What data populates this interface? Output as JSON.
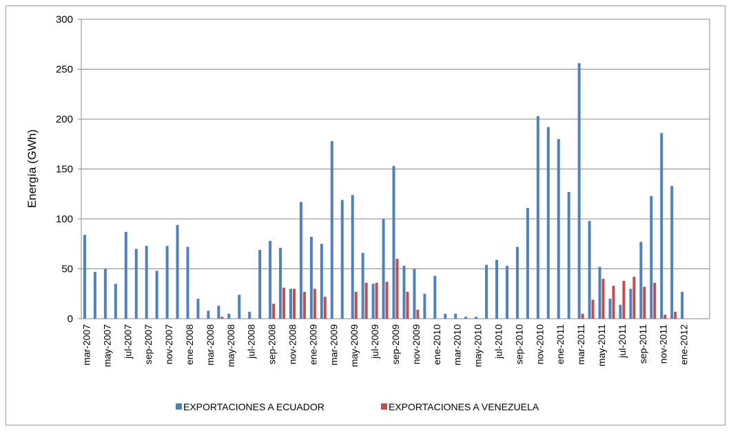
{
  "chart_data": {
    "type": "bar",
    "y_label": "Energía (GWh)",
    "categories": [
      "mar-2007",
      null,
      "may-2007",
      null,
      "jul-2007",
      null,
      "sep-2007",
      null,
      "nov-2007",
      null,
      "ene-2008",
      null,
      "mar-2008",
      null,
      "may-2008",
      null,
      "jul-2008",
      null,
      "sep-2008",
      null,
      "nov-2008",
      null,
      "ene-2009",
      null,
      "mar-2009",
      null,
      "may-2009",
      null,
      "jul-2009",
      null,
      "sep-2009",
      null,
      "nov-2009",
      null,
      "ene-2010",
      null,
      "mar-2010",
      null,
      "may-2010",
      null,
      "jul-2010",
      null,
      "sep-2010",
      null,
      "nov-2010",
      null,
      "ene-2011",
      null,
      "mar-2011",
      null,
      "may-2011",
      null,
      "jul-2011",
      null,
      "sep-2011",
      null,
      "nov-2011",
      null,
      "ene-2012",
      null,
      null
    ],
    "series": [
      {
        "name": "EXPORTACIONES A ECUADOR",
        "color": "#4f81bd",
        "values": [
          84,
          47,
          50,
          35,
          87,
          70,
          73,
          48,
          73,
          94,
          72,
          20,
          8,
          13,
          5,
          24,
          7,
          69,
          78,
          71,
          30,
          117,
          82,
          75,
          178,
          119,
          124,
          66,
          35,
          100,
          153,
          53,
          50,
          25,
          43,
          5,
          5,
          2,
          2,
          54,
          59,
          53,
          72,
          111,
          203,
          192,
          180,
          127,
          256,
          98,
          52,
          20,
          14,
          30,
          77,
          123,
          186,
          133,
          27,
          null,
          null
        ]
      },
      {
        "name": "EXPORTACIONES A VENEZUELA",
        "color": "#c0504d",
        "values": [
          0,
          0,
          0,
          0,
          0,
          0,
          0,
          0,
          0,
          0,
          0,
          0,
          0,
          2,
          0,
          0,
          0,
          0,
          15,
          31,
          30,
          27,
          30,
          22,
          0,
          0,
          27,
          36,
          36,
          37,
          60,
          27,
          9,
          0,
          0,
          0,
          0,
          0,
          0,
          0,
          0,
          0,
          0,
          0,
          0,
          0,
          0,
          0,
          5,
          19,
          40,
          33,
          38,
          42,
          32,
          36,
          4,
          7,
          0,
          null,
          null
        ]
      }
    ],
    "ylim": [
      0,
      300
    ],
    "yticks": [
      0,
      50,
      100,
      150,
      200,
      250,
      300
    ],
    "grid": true,
    "legend": "bottom"
  }
}
